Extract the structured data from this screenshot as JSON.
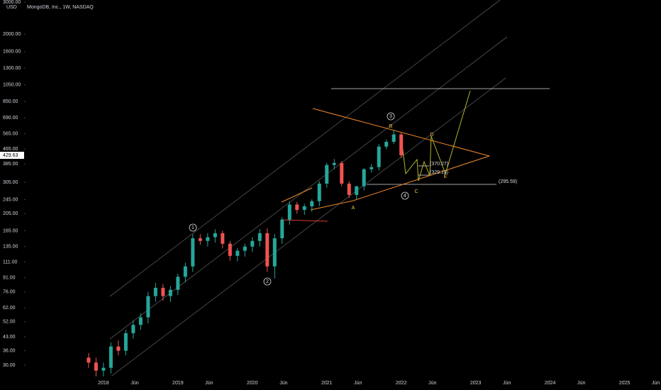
{
  "chart_data": {
    "type": "candlestick",
    "title": "MongoDB, Inc., 1W, NASDAQ",
    "currency": "USD",
    "log_scale": true,
    "up_color": "#26a69a",
    "down_color": "#ef5350",
    "x": [
      2017.8,
      2017.9,
      2018.0,
      2018.1,
      2018.2,
      2018.3,
      2018.4,
      2018.5,
      2018.6,
      2018.7,
      2018.8,
      2018.9,
      2019.0,
      2019.1,
      2019.2,
      2019.3,
      2019.4,
      2019.5,
      2019.6,
      2019.7,
      2019.8,
      2019.9,
      2020.0,
      2020.1,
      2020.2,
      2020.3,
      2020.4,
      2020.5,
      2020.6,
      2020.7,
      2020.8,
      2020.9,
      2021.0,
      2021.1,
      2021.2,
      2021.3,
      2021.4,
      2021.5,
      2021.6,
      2021.7,
      2021.8,
      2021.9,
      2022.0
    ],
    "open": [
      33,
      31,
      28,
      29,
      38,
      36,
      45,
      50,
      55,
      72,
      80,
      72,
      78,
      92,
      105,
      150,
      145,
      152,
      160,
      140,
      120,
      128,
      135,
      145,
      160,
      105,
      150,
      190,
      230,
      215,
      225,
      240,
      300,
      380,
      390,
      300,
      260,
      290,
      360,
      370,
      480,
      510,
      560
    ],
    "high": [
      35,
      33,
      31,
      40,
      41,
      47,
      53,
      58,
      76,
      85,
      84,
      82,
      96,
      110,
      158,
      158,
      160,
      168,
      165,
      145,
      132,
      140,
      152,
      168,
      170,
      158,
      196,
      240,
      238,
      232,
      246,
      310,
      390,
      410,
      400,
      310,
      292,
      365,
      385,
      495,
      525,
      590,
      575
    ],
    "low": [
      29,
      26,
      26,
      27,
      34,
      34,
      42,
      47,
      51,
      67,
      68,
      67,
      73,
      86,
      98,
      138,
      135,
      142,
      132,
      113,
      112,
      119,
      126,
      135,
      98,
      90,
      140,
      178,
      205,
      202,
      210,
      225,
      285,
      360,
      290,
      250,
      245,
      275,
      345,
      355,
      465,
      495,
      415
    ],
    "close": [
      31,
      28,
      29,
      38,
      36,
      45,
      50,
      55,
      72,
      80,
      72,
      78,
      92,
      105,
      150,
      145,
      152,
      160,
      140,
      120,
      128,
      135,
      145,
      160,
      105,
      150,
      190,
      230,
      215,
      225,
      240,
      300,
      380,
      390,
      300,
      260,
      290,
      360,
      370,
      480,
      510,
      560,
      430
    ],
    "last_price": 429.63,
    "xlim": [
      2016.61,
      2025.49
    ],
    "xticks": [
      {
        "value": 2018,
        "label": "2018"
      },
      {
        "value": 2018.42,
        "label": "Jun"
      },
      {
        "value": 2019,
        "label": "2019"
      },
      {
        "value": 2019.42,
        "label": "Jun"
      },
      {
        "value": 2020,
        "label": "2020"
      },
      {
        "value": 2020.42,
        "label": "Jun"
      },
      {
        "value": 2021,
        "label": "2021"
      },
      {
        "value": 2021.42,
        "label": "Jun"
      },
      {
        "value": 2022,
        "label": "2022"
      },
      {
        "value": 2022.42,
        "label": "Jun"
      },
      {
        "value": 2023,
        "label": "2023"
      },
      {
        "value": 2023.42,
        "label": "Jun"
      },
      {
        "value": 2024,
        "label": "2024"
      },
      {
        "value": 2024.42,
        "label": "Jun"
      },
      {
        "value": 2025,
        "label": "2025"
      },
      {
        "value": 2025.42,
        "label": "Jun"
      }
    ],
    "ylim": [
      26.2,
      3082
    ],
    "yticks": [
      {
        "value": 3000,
        "label": "3000.00"
      },
      {
        "value": 2000,
        "label": "2000.00"
      },
      {
        "value": 1600,
        "label": "1600.00"
      },
      {
        "value": 1300,
        "label": "1300.00"
      },
      {
        "value": 1050,
        "label": "1050.00"
      },
      {
        "value": 850,
        "label": "850.00"
      },
      {
        "value": 690,
        "label": "690.00"
      },
      {
        "value": 565,
        "label": "565.00"
      },
      {
        "value": 465,
        "label": "465.00"
      },
      {
        "value": 385,
        "label": "385.00"
      },
      {
        "value": 305,
        "label": "305.00"
      },
      {
        "value": 245,
        "label": "245.00"
      },
      {
        "value": 205,
        "label": "205.00"
      },
      {
        "value": 165,
        "label": "165.00"
      },
      {
        "value": 135,
        "label": "135.00"
      },
      {
        "value": 111,
        "label": "111.00"
      },
      {
        "value": 91,
        "label": "91.00"
      },
      {
        "value": 76,
        "label": "76.00"
      },
      {
        "value": 62,
        "label": "62.00"
      },
      {
        "value": 52,
        "label": "52.00"
      },
      {
        "value": 43,
        "label": "43.00"
      },
      {
        "value": 36,
        "label": "36.00"
      },
      {
        "value": 30,
        "label": "30.00"
      }
    ],
    "annotations": [
      "1",
      "2",
      "3",
      "4",
      "A",
      "B",
      "C",
      "D",
      "E",
      "(370.27)",
      "(329.13)",
      "(295.59)"
    ]
  }
}
